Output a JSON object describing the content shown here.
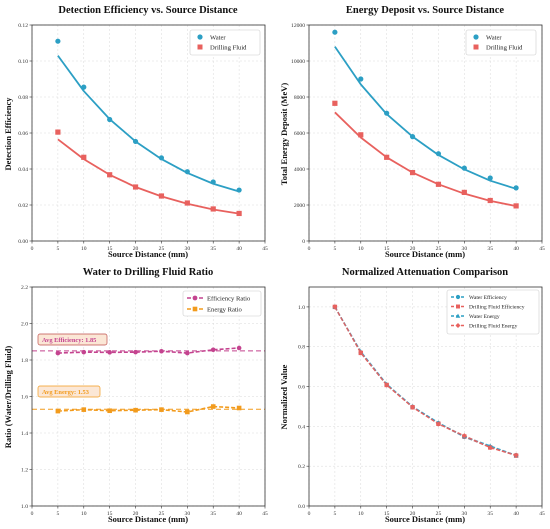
{
  "colors": {
    "water": "#2c9fc4",
    "drilling": "#e8615e",
    "efficiency_ratio": "#c4438f",
    "energy_ratio": "#f29b1d",
    "grid": "#d9d9d9",
    "frame": "#333333"
  },
  "chart_data": [
    {
      "type": "scatter",
      "title": "Detection Efficiency vs. Source Distance",
      "xlabel": "Source Distance (mm)",
      "ylabel": "Detection Efficiency",
      "xlim": [
        0,
        45
      ],
      "ylim": [
        0,
        0.12
      ],
      "xticks": [
        "0",
        "5",
        "10",
        "15",
        "20",
        "25",
        "30",
        "35",
        "40",
        "45"
      ],
      "yticks": [
        "0.00",
        "0.02",
        "0.04",
        "0.06",
        "0.08",
        "0.10",
        "0.12"
      ],
      "legend_position": "top-right",
      "x": [
        5,
        10,
        15,
        20,
        25,
        30,
        35,
        40
      ],
      "series": [
        {
          "name": "Water",
          "marker": "circle",
          "values": [
            0.111,
            0.0855,
            0.0675,
            0.0553,
            0.0462,
            0.0385,
            0.0328,
            0.0283
          ],
          "fit": [
            0.103,
            0.0833,
            0.0677,
            0.0553,
            0.0455,
            0.0378,
            0.0318,
            0.0275
          ]
        },
        {
          "name": "Drilling Fluid",
          "marker": "square",
          "values": [
            0.0605,
            0.0465,
            0.0368,
            0.03,
            0.025,
            0.0211,
            0.0178,
            0.0153
          ],
          "fit": [
            0.0565,
            0.0455,
            0.0368,
            0.03,
            0.0248,
            0.0207,
            0.0175,
            0.0152
          ]
        }
      ]
    },
    {
      "type": "scatter",
      "title": "Energy Deposit vs. Source Distance",
      "xlabel": "Source Distance (mm)",
      "ylabel": "Total Energy Deposit (MeV)",
      "xlim": [
        0,
        45
      ],
      "ylim": [
        0,
        12000
      ],
      "xticks": [
        "0",
        "5",
        "10",
        "15",
        "20",
        "25",
        "30",
        "35",
        "40",
        "45"
      ],
      "yticks": [
        "0",
        "2000",
        "4000",
        "6000",
        "8000",
        "10000",
        "12000"
      ],
      "legend_position": "top-right",
      "x": [
        5,
        10,
        15,
        20,
        25,
        30,
        35,
        40
      ],
      "series": [
        {
          "name": "Water",
          "marker": "circle",
          "values": [
            11600,
            9000,
            7100,
            5800,
            4850,
            4050,
            3500,
            2950
          ],
          "fit": [
            10800,
            8700,
            7050,
            5800,
            4780,
            3980,
            3350,
            2900
          ]
        },
        {
          "name": "Drilling Fluid",
          "marker": "square",
          "values": [
            7650,
            5900,
            4650,
            3800,
            3150,
            2700,
            2250,
            1950
          ],
          "fit": [
            7150,
            5750,
            4650,
            3800,
            3150,
            2630,
            2230,
            1940
          ]
        }
      ]
    },
    {
      "type": "line",
      "title": "Water to Drilling Fluid Ratio",
      "xlabel": "Source Distance (mm)",
      "ylabel": "Ratio (Water/Drilling Fluid)",
      "xlim": [
        0,
        45
      ],
      "ylim": [
        1.0,
        2.2
      ],
      "xticks": [
        "0",
        "5",
        "10",
        "15",
        "20",
        "25",
        "30",
        "35",
        "40",
        "45"
      ],
      "yticks": [
        "1.0",
        "1.2",
        "1.4",
        "1.6",
        "1.8",
        "2.0",
        "2.2"
      ],
      "legend_position": "top-right",
      "x": [
        5,
        10,
        15,
        20,
        25,
        30,
        35,
        40
      ],
      "series": [
        {
          "name": "Efficiency Ratio",
          "marker": "circle",
          "values": [
            1.838,
            1.843,
            1.842,
            1.843,
            1.848,
            1.838,
            1.856,
            1.866
          ],
          "avg": 1.85
        },
        {
          "name": "Energy Ratio",
          "marker": "square",
          "values": [
            1.52,
            1.528,
            1.522,
            1.525,
            1.528,
            1.515,
            1.545,
            1.537
          ],
          "avg": 1.53
        }
      ],
      "annotations": [
        {
          "text": "Avg Efficiency: 1.85",
          "x": 5,
          "y": 1.893
        },
        {
          "text": "Avg Energy: 1.53",
          "x": 5,
          "y": 1.573
        }
      ]
    },
    {
      "type": "line",
      "title": "Normalized Attenuation Comparison",
      "xlabel": "Source Distance (mm)",
      "ylabel": "Normalized Value",
      "xlim": [
        0,
        45
      ],
      "ylim": [
        0.0,
        1.1
      ],
      "xticks": [
        "0",
        "5",
        "10",
        "15",
        "20",
        "25",
        "30",
        "35",
        "40",
        "45"
      ],
      "yticks": [
        "0.0",
        "0.2",
        "0.4",
        "0.6",
        "0.8",
        "1.0"
      ],
      "legend_position": "top-right",
      "x": [
        5,
        10,
        15,
        20,
        25,
        30,
        35,
        40
      ],
      "series": [
        {
          "name": "Water Efficiency",
          "marker": "circle",
          "values": [
            1.0,
            0.77,
            0.608,
            0.498,
            0.416,
            0.347,
            0.296,
            0.255
          ]
        },
        {
          "name": "Drilling Fluid Efficiency",
          "marker": "square",
          "values": [
            1.0,
            0.769,
            0.608,
            0.496,
            0.413,
            0.349,
            0.294,
            0.253
          ]
        },
        {
          "name": "Water Energy",
          "marker": "triangle",
          "values": [
            1.0,
            0.776,
            0.612,
            0.5,
            0.418,
            0.349,
            0.302,
            0.254
          ]
        },
        {
          "name": "Drilling Fluid Energy",
          "marker": "diamond",
          "values": [
            1.0,
            0.771,
            0.608,
            0.497,
            0.412,
            0.353,
            0.294,
            0.255
          ]
        }
      ]
    }
  ]
}
